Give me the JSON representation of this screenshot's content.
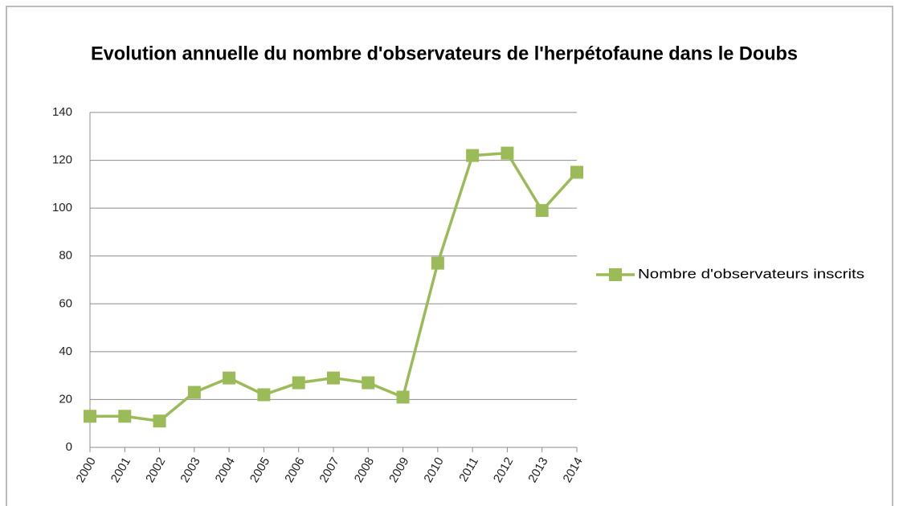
{
  "chart_data": {
    "type": "line",
    "title": "Evolution annuelle du nombre d'observateurs de l'herpétofaune dans le Doubs",
    "categories": [
      "2000",
      "2001",
      "2002",
      "2003",
      "2004",
      "2005",
      "2006",
      "2007",
      "2008",
      "2009",
      "2010",
      "2011",
      "2012",
      "2013",
      "2014"
    ],
    "series": [
      {
        "name": "Nombre d'observateurs inscrits",
        "color": "#9bbb59",
        "values": [
          13,
          13,
          11,
          23,
          29,
          22,
          27,
          29,
          27,
          21,
          77,
          122,
          123,
          99,
          115
        ]
      }
    ],
    "ylim": [
      0,
      140
    ],
    "yticks": [
      0,
      20,
      40,
      60,
      80,
      100,
      120,
      140
    ],
    "grid": true,
    "legend": "right"
  }
}
